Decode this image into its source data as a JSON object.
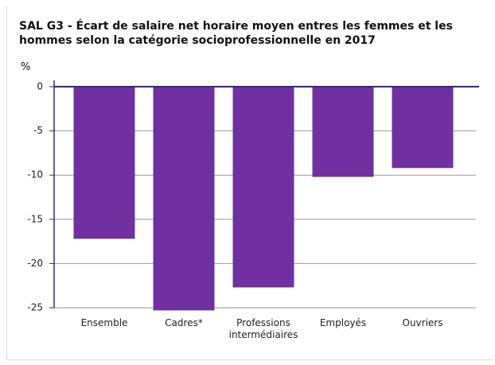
{
  "chart_data": {
    "type": "bar",
    "title": "SAL G3 - Écart de salaire net horaire moyen entres les femmes et les hommes selon la catégorie socioprofessionnelle en 2017",
    "y_label": "%",
    "categories": [
      "Ensemble",
      "Cadres*",
      "Professions intermédiaires",
      "Employés",
      "Ouvriers"
    ],
    "values": [
      -17.2,
      -25.3,
      -22.7,
      -10.2,
      -9.2
    ],
    "color": "#7030a0",
    "ylim": [
      -25,
      0
    ],
    "yticks": [
      0,
      -5,
      -10,
      -15,
      -20,
      -25
    ],
    "grid": true
  }
}
